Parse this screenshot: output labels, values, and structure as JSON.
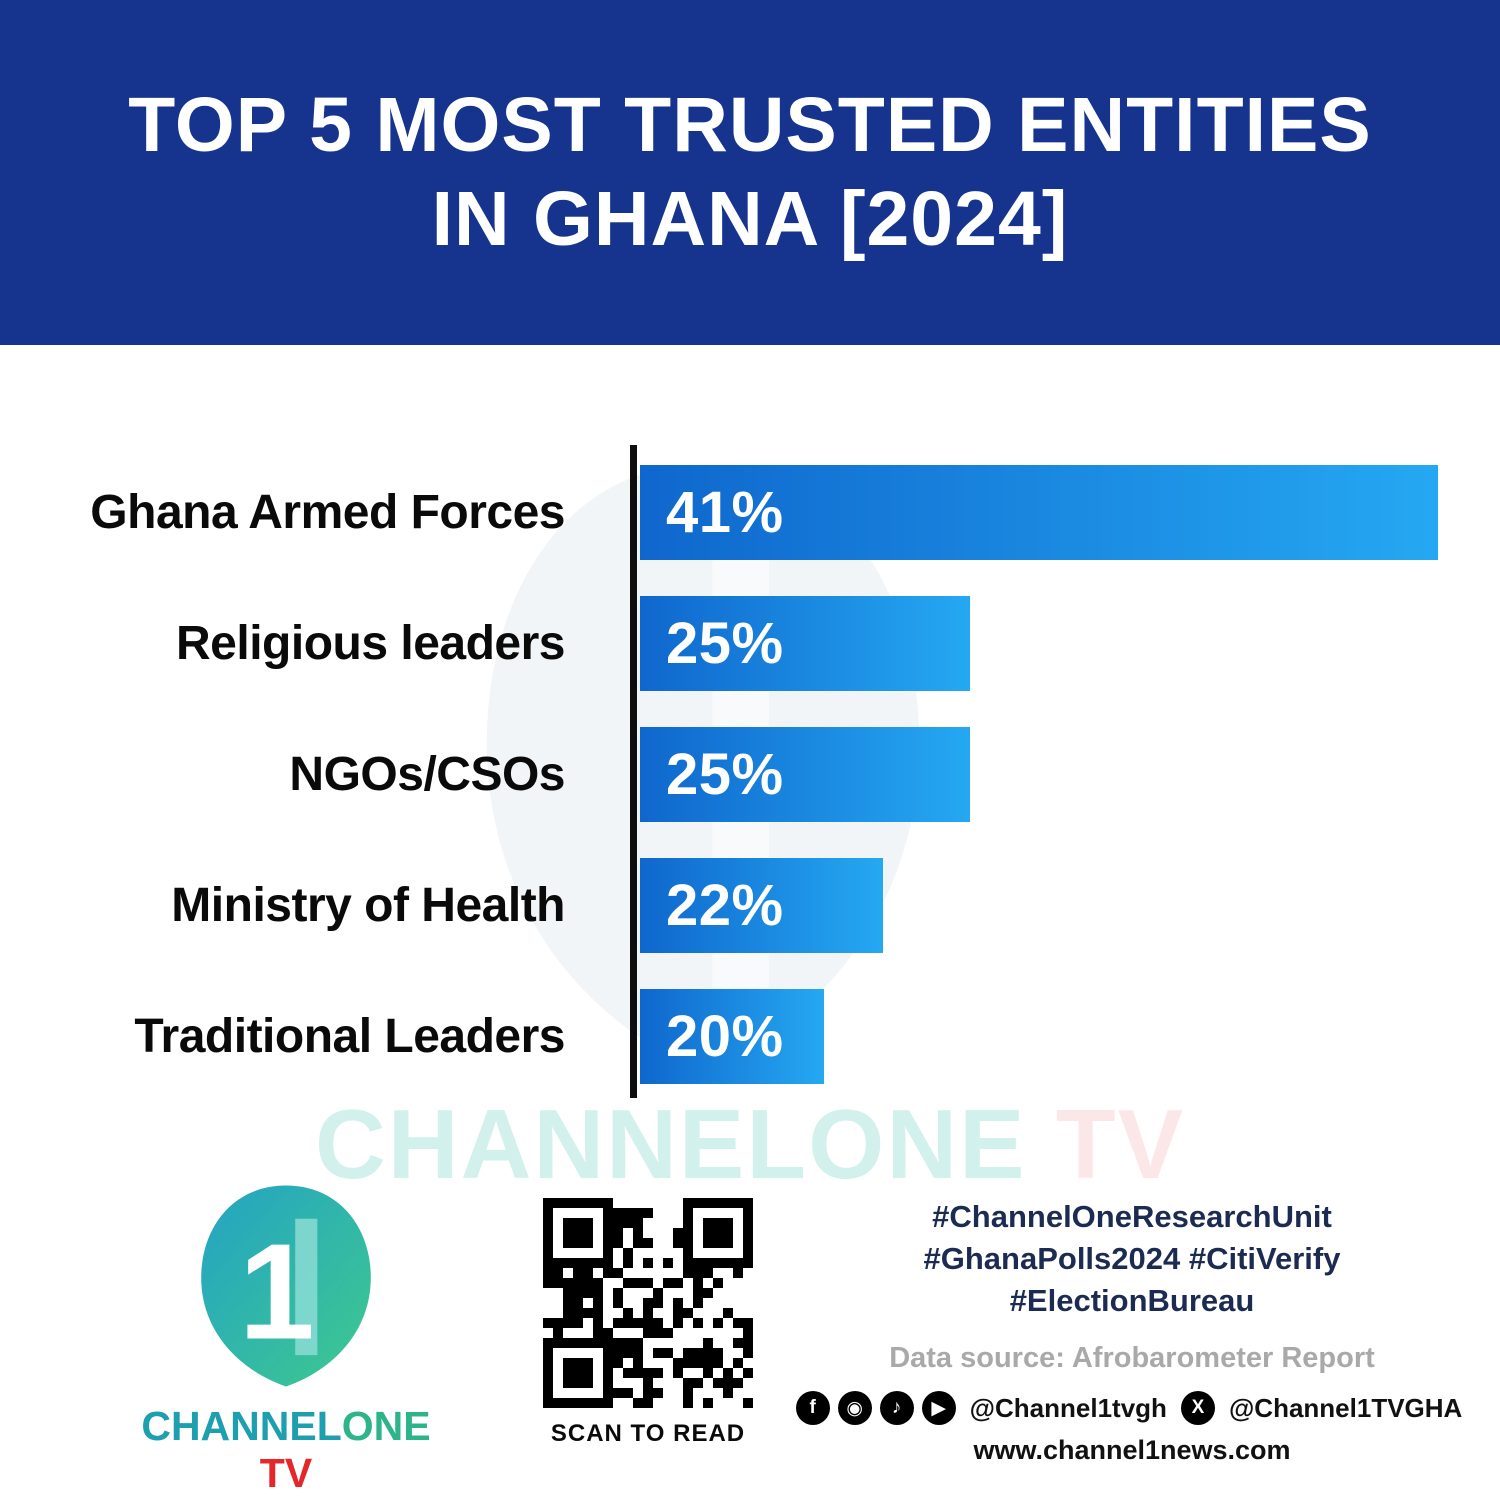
{
  "header": {
    "title_line1": "TOP 5 MOST TRUSTED ENTITIES",
    "title_line2": "IN GHANA [2024]"
  },
  "chart_data": {
    "type": "bar",
    "orientation": "horizontal",
    "title": "Top 5 most trusted entities in Ghana (2024)",
    "categories": [
      "Ghana Armed Forces",
      "Religious leaders",
      "NGOs/CSOs",
      "Ministry of Health",
      "Traditional Leaders"
    ],
    "values": [
      41,
      25,
      25,
      22,
      20
    ],
    "value_labels": [
      "41%",
      "25%",
      "25%",
      "22%",
      "20%"
    ],
    "bar_fractions": [
      1.0,
      0.413,
      0.413,
      0.304,
      0.231
    ],
    "bar_gradient_start": "#0f67cd",
    "bar_gradient_end": "#25a8f2",
    "axis_color": "#0d0d0d",
    "grid": false,
    "legend": false
  },
  "watermark": {
    "brand": "CHANNELONE",
    "suffix": " TV"
  },
  "footer": {
    "logo": {
      "numeral": "1",
      "brand_channel": "CHANNEL",
      "brand_one": "ONE",
      "brand_tv": " TV"
    },
    "qr_caption": "SCAN TO READ",
    "hashtags_line1": "#ChannelOneResearchUnit",
    "hashtags_line2": "#GhanaPolls2024 #CitiVerify",
    "hashtags_line3": "#ElectionBureau",
    "data_source": "Data source: Afrobarometer Report",
    "social": {
      "facebook_glyph": "f",
      "instagram_glyph": "◉",
      "tiktok_glyph": "♪",
      "youtube_glyph": "▶",
      "x_glyph": "X",
      "handle1": "@Channel1tvgh",
      "handle2": "@Channel1TVGHA"
    },
    "website": "www.channel1news.com"
  },
  "colors": {
    "header_bg": "#16338e",
    "hashtag_navy": "#1c2b52",
    "source_gray": "#a9a9a9",
    "logo_teal": "#1e9fb0",
    "logo_green": "#2db488",
    "logo_red": "#e5262b"
  }
}
